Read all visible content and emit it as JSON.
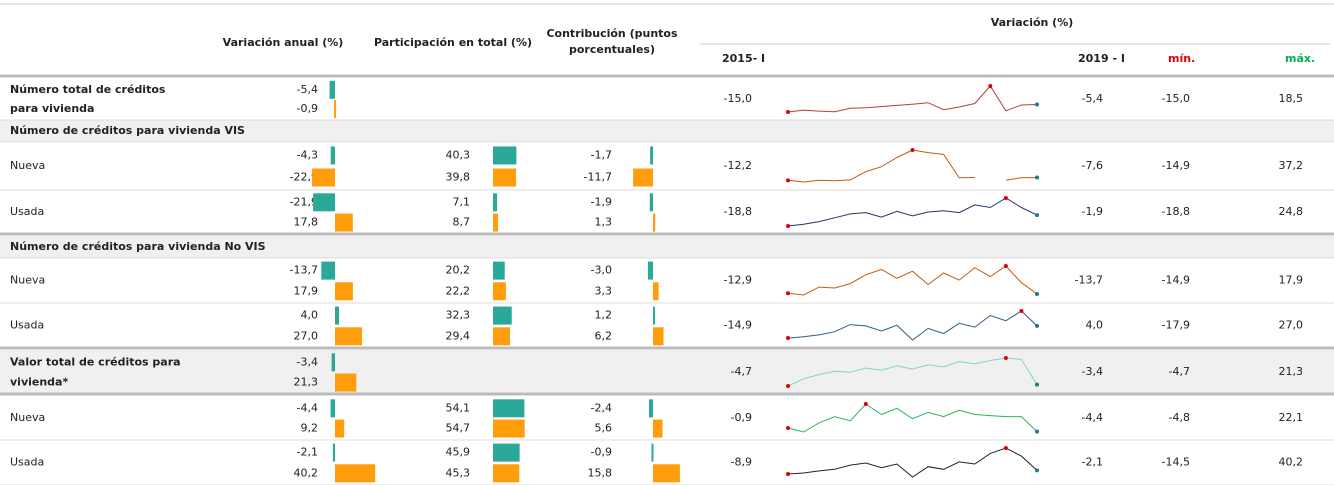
{
  "header": {
    "annual": "Variación anual (%)",
    "share": "Participación en total (%)",
    "contribution": [
      "Contribución (puntos",
      "porcentuales)"
    ],
    "variation": "Variación (%)",
    "start": "2015- I",
    "end": "2019 - I",
    "min": "mín.",
    "max": "máx."
  },
  "rows": [
    {
      "label": [
        "Número total de créditos",
        "para vivienda"
      ],
      "annual": [
        {
          "value": -5.4,
          "label": "-5,4"
        },
        {
          "value": -0.9,
          "label": "-0,9"
        }
      ],
      "start": {
        "value": -15.0,
        "label": "-15,0"
      },
      "end": {
        "value": -5.4,
        "label": "-5,4"
      },
      "min": {
        "value": -15.0,
        "label": "-15,0"
      },
      "max": {
        "value": 18.5,
        "label": "18,5"
      },
      "trend": [
        -15.0,
        -12.5,
        -13.8,
        -14.6,
        -10.2,
        -9.5,
        -8.0,
        -6.5,
        -5.0,
        -3.0,
        -12.0,
        -8.5,
        -4.0,
        18.5,
        -13.5,
        -6.0,
        -5.4
      ],
      "color": "#b0413e"
    },
    {
      "label": [
        "Número de créditos para vivienda VIS"
      ]
    },
    {
      "label": [
        "Nueva"
      ],
      "annual": [
        {
          "value": -4.3,
          "label": "-4,3"
        },
        {
          "value": -22.9,
          "label": "-22,9"
        }
      ],
      "share": [
        {
          "value": 40.3,
          "label": "40,3"
        },
        {
          "value": 39.8,
          "label": "39,8"
        }
      ],
      "contribution": [
        {
          "value": -1.7,
          "label": "-1,7"
        },
        {
          "value": -11.7,
          "label": "-11,7"
        }
      ],
      "start": {
        "value": -12.2,
        "label": "-12,2"
      },
      "end": {
        "value": -7.6,
        "label": "-7,6"
      },
      "min": {
        "value": -14.9,
        "label": "-14,9"
      },
      "max": {
        "value": 37.2,
        "label": "37,2"
      },
      "trend": [
        -12.2,
        -14.9,
        -12.0,
        -13.0,
        -11.5,
        2.0,
        10.0,
        25.0,
        37.2,
        33.0,
        30.0,
        -8.0,
        -7.5,
        null,
        -12.0,
        -8.0,
        -7.6
      ],
      "color": "#c55a11"
    },
    {
      "label": [
        "Usada"
      ],
      "annual": [
        {
          "value": -21.9,
          "label": "-21,9"
        },
        {
          "value": 17.8,
          "label": "17,8"
        }
      ],
      "share": [
        {
          "value": 7.1,
          "label": "7,1"
        },
        {
          "value": 8.7,
          "label": "8,7"
        }
      ],
      "contribution": [
        {
          "value": -1.9,
          "label": "-1,9"
        },
        {
          "value": 1.3,
          "label": "1,3"
        }
      ],
      "start": {
        "value": -18.8,
        "label": "-18,8"
      },
      "end": {
        "value": -1.9,
        "label": "-1,9"
      },
      "min": {
        "value": -18.8,
        "label": "-18,8"
      },
      "max": {
        "value": 24.8,
        "label": "24,8"
      },
      "trend": [
        -18.8,
        -16.0,
        -12.0,
        -6.0,
        0.0,
        2.0,
        -5.0,
        4.0,
        -3.0,
        3.0,
        5.0,
        2.0,
        14.0,
        10.0,
        24.8,
        10.0,
        -1.9
      ],
      "color": "#1f3864"
    },
    {
      "label": [
        "Número de créditos para vivienda No VIS"
      ]
    },
    {
      "label": [
        "Nueva"
      ],
      "annual": [
        {
          "value": -13.7,
          "label": "-13,7"
        },
        {
          "value": 17.9,
          "label": "17,9"
        }
      ],
      "share": [
        {
          "value": 20.2,
          "label": "20,2"
        },
        {
          "value": 22.2,
          "label": "22,2"
        }
      ],
      "contribution": [
        {
          "value": -3.0,
          "label": "-3,0"
        },
        {
          "value": 3.3,
          "label": "3,3"
        }
      ],
      "start": {
        "value": -12.9,
        "label": "-12,9"
      },
      "end": {
        "value": -13.7,
        "label": "-13,7"
      },
      "min": {
        "value": -14.9,
        "label": "-14,9"
      },
      "max": {
        "value": 17.9,
        "label": "17,9"
      },
      "trend": [
        -12.9,
        -14.9,
        -6.0,
        -7.0,
        -2.0,
        8.0,
        14.0,
        4.0,
        12.0,
        -3.0,
        10.0,
        2.0,
        16.0,
        6.0,
        17.9,
        -1.0,
        -13.7
      ],
      "color": "#c55a11"
    },
    {
      "label": [
        "Usada"
      ],
      "annual": [
        {
          "value": 4.0,
          "label": "4,0"
        },
        {
          "value": 27.0,
          "label": "27,0"
        }
      ],
      "share": [
        {
          "value": 32.3,
          "label": "32,3"
        },
        {
          "value": 29.4,
          "label": "29,4"
        }
      ],
      "contribution": [
        {
          "value": 1.2,
          "label": "1,2"
        },
        {
          "value": 6.2,
          "label": "6,2"
        }
      ],
      "start": {
        "value": -14.9,
        "label": "-14,9"
      },
      "end": {
        "value": 4.0,
        "label": "4,0"
      },
      "min": {
        "value": -17.9,
        "label": "-17,9"
      },
      "max": {
        "value": 27.0,
        "label": "27,0"
      },
      "trend": [
        -14.9,
        -13.0,
        -10.0,
        -5.0,
        6.0,
        4.0,
        -4.0,
        5.0,
        -17.9,
        0.0,
        -8.0,
        8.0,
        2.0,
        20.0,
        12.0,
        27.0,
        4.0
      ],
      "color": "#2e5c8a"
    },
    {
      "label": [
        "Valor total de créditos para",
        "vivienda*"
      ],
      "annual": [
        {
          "value": -3.4,
          "label": "-3,4"
        },
        {
          "value": 21.3,
          "label": "21,3"
        }
      ],
      "start": {
        "value": -4.7,
        "label": "-4,7"
      },
      "end": {
        "value": -3.4,
        "label": "-3,4"
      },
      "min": {
        "value": -4.7,
        "label": "-4,7"
      },
      "max": {
        "value": 21.3,
        "label": "21,3"
      },
      "trend": [
        -4.7,
        2.0,
        6.0,
        9.0,
        8.0,
        12.0,
        10.0,
        14.0,
        11.0,
        15.0,
        13.0,
        18.0,
        16.0,
        19.0,
        21.3,
        20.0,
        -3.4
      ],
      "color": "#7fd6c8"
    },
    {
      "label": [
        "Nueva"
      ],
      "annual": [
        {
          "value": -4.4,
          "label": "-4,4"
        },
        {
          "value": 9.2,
          "label": "9,2"
        }
      ],
      "share": [
        {
          "value": 54.1,
          "label": "54,1"
        },
        {
          "value": 54.7,
          "label": "54,7"
        }
      ],
      "contribution": [
        {
          "value": -2.4,
          "label": "-2,4"
        },
        {
          "value": 5.6,
          "label": "5,6"
        }
      ],
      "start": {
        "value": -0.9,
        "label": "-0,9"
      },
      "end": {
        "value": -4.4,
        "label": "-4,4"
      },
      "min": {
        "value": -4.8,
        "label": "-4,8"
      },
      "max": {
        "value": 22.1,
        "label": "22,1"
      },
      "trend": [
        -0.9,
        -4.8,
        4.0,
        10.0,
        6.0,
        22.1,
        12.0,
        18.0,
        8.0,
        14.0,
        10.0,
        16.0,
        12.0,
        11.0,
        10.0,
        10.0,
        -4.4
      ],
      "color": "#2bb55a"
    },
    {
      "label": [
        "Usada"
      ],
      "annual": [
        {
          "value": -2.1,
          "label": "-2,1"
        },
        {
          "value": 40.2,
          "label": "40,2"
        }
      ],
      "share": [
        {
          "value": 45.9,
          "label": "45,9"
        },
        {
          "value": 45.3,
          "label": "45,3"
        }
      ],
      "contribution": [
        {
          "value": -0.9,
          "label": "-0,9"
        },
        {
          "value": 15.8,
          "label": "15,8"
        }
      ],
      "start": {
        "value": -8.9,
        "label": "-8,9"
      },
      "end": {
        "value": -2.1,
        "label": "-2,1"
      },
      "min": {
        "value": -14.5,
        "label": "-14,5"
      },
      "max": {
        "value": 40.2,
        "label": "40,2"
      },
      "trend": [
        -8.9,
        -7.0,
        -3.0,
        0.0,
        8.0,
        12.0,
        3.0,
        10.0,
        -14.5,
        5.0,
        0.0,
        14.0,
        10.0,
        30.0,
        40.2,
        25.0,
        -2.1
      ],
      "color": "#222222"
    }
  ]
}
